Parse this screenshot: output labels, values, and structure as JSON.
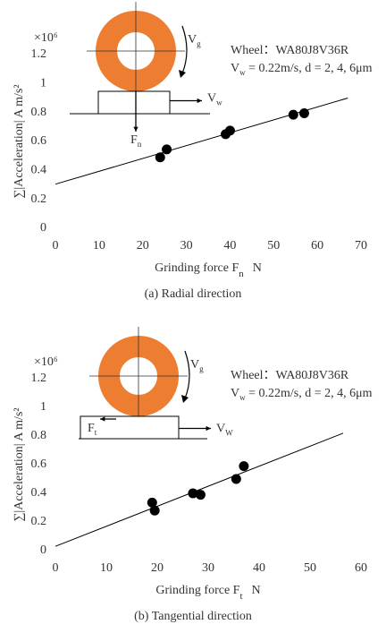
{
  "chart_data": [
    {
      "type": "scatter",
      "caption": "(a) Radial direction",
      "x_label": "Grinding force F",
      "x_label_sub": "n",
      "x_label_unit": "N",
      "y_label": "∑|Acceleration| A m/s²",
      "y_multiplier": "×10⁶",
      "annotation": [
        "Wheel：WA80J8V36R",
        "V",
        "w",
        " = 0.22m/s, d = 2, 4, 6μm"
      ],
      "wheel_speed_label": [
        "V",
        "g"
      ],
      "work_speed_label": [
        "V",
        "w"
      ],
      "force_label": [
        "F",
        "n"
      ],
      "x": [
        24,
        25.5,
        39,
        40,
        54.5,
        57
      ],
      "y": [
        0.49,
        0.545,
        0.65,
        0.675,
        0.785,
        0.795
      ],
      "fit_line": {
        "x": [
          0,
          67
        ],
        "y": [
          0.305,
          0.9
        ]
      },
      "xlim": [
        0,
        70
      ],
      "ylim": [
        0,
        1.2
      ],
      "xticks": [
        0,
        10,
        20,
        30,
        40,
        50,
        60,
        70
      ],
      "yticks": [
        0,
        0.2,
        0.4,
        0.6,
        0.8,
        1,
        1.2
      ],
      "color": "#000000",
      "wheel_color": "#ed7d31"
    },
    {
      "type": "scatter",
      "caption": "(b) Tangential direction",
      "x_label": "Grinding force F",
      "x_label_sub": "t",
      "x_label_unit": "N",
      "y_label": "∑|Acceleration| A m/s²",
      "y_multiplier": "×10⁶",
      "annotation": [
        "Wheel：WA80J8V36R",
        "V",
        "w",
        " = 0.22m/s, d = 2, 4, 6μm"
      ],
      "wheel_speed_label": [
        "V",
        "g"
      ],
      "work_speed_label": [
        "V",
        "W"
      ],
      "force_label": [
        "F",
        "t"
      ],
      "x": [
        19,
        19.5,
        27,
        28.5,
        35.5,
        37
      ],
      "y": [
        0.335,
        0.28,
        0.4,
        0.39,
        0.5,
        0.59
      ],
      "fit_line": {
        "x": [
          0,
          56.5
        ],
        "y": [
          0.03,
          0.82
        ]
      },
      "xlim": [
        0,
        60
      ],
      "ylim": [
        0,
        1.2
      ],
      "xticks": [
        0,
        10,
        20,
        30,
        40,
        50,
        60
      ],
      "yticks": [
        0,
        0.2,
        0.4,
        0.6,
        0.8,
        1,
        1.2
      ],
      "color": "#000000",
      "wheel_color": "#ed7d31"
    }
  ]
}
